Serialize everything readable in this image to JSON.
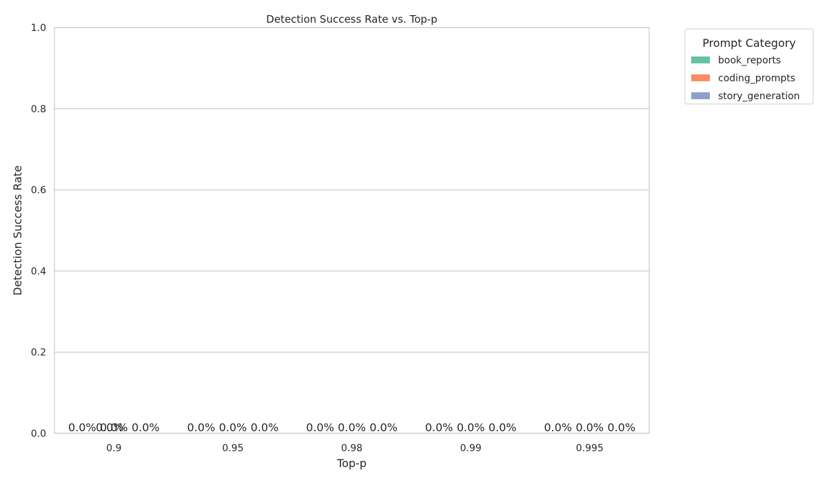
{
  "chart_data": {
    "type": "bar",
    "title": "Detection Success Rate vs. Top-p",
    "xlabel": "Top-p",
    "ylabel": "Detection Success Rate",
    "categories": [
      "0.9",
      "0.95",
      "0.98",
      "0.99",
      "0.995"
    ],
    "series": [
      {
        "name": "book_reports",
        "values": [
          0.0,
          0.0,
          0.0,
          0.0,
          0.0
        ],
        "color": "#66c2a5"
      },
      {
        "name": "coding_prompts",
        "values": [
          0.0,
          0.0,
          0.0,
          0.0,
          0.0
        ],
        "color": "#fc8d62"
      },
      {
        "name": "story_generation",
        "values": [
          0.0,
          0.0,
          0.0,
          0.0,
          0.0
        ],
        "color": "#8da0cb"
      }
    ],
    "data_labels": [
      [
        "0.0%",
        "0.0%",
        "0.0%",
        "0.0%",
        "0.0%"
      ],
      [
        "0.0%",
        "0.0%",
        "0.0%",
        "0.0%",
        "0.0%"
      ],
      [
        "0.0%",
        "0.0%",
        "0.0%",
        "0.0%",
        "0.0%"
      ]
    ],
    "extra_labels": [
      {
        "category_index": 0,
        "series_index": 1,
        "text": "0.0%"
      }
    ],
    "ylim": [
      0,
      1
    ],
    "yticks": [
      "0.0",
      "0.2",
      "0.4",
      "0.6",
      "0.8",
      "1.0"
    ],
    "grid": true,
    "legend": {
      "title": "Prompt Category",
      "placement": "outside-top-right"
    }
  }
}
